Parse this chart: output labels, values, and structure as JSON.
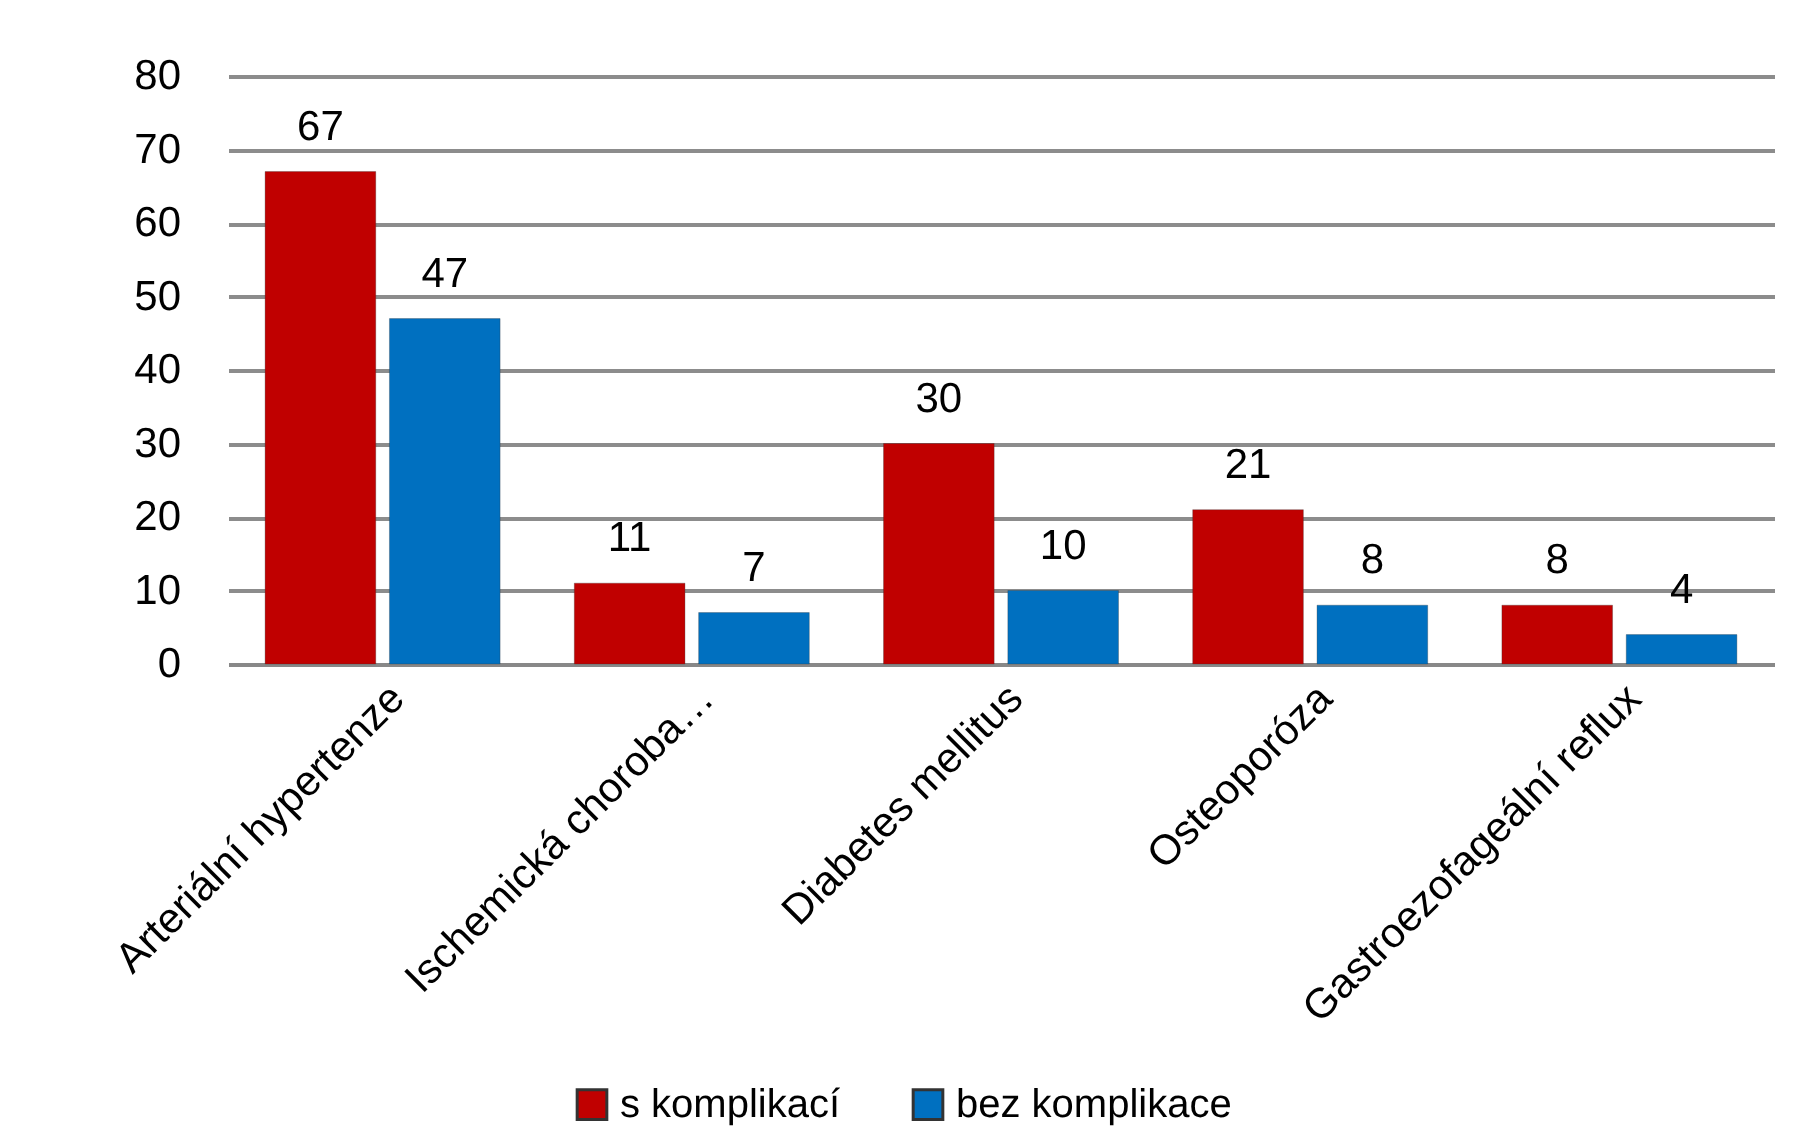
{
  "chart_data": {
    "type": "bar",
    "categories": [
      "Arteriální hypertenze",
      "Ischemická choroba…",
      "Diabetes mellitus",
      "Osteoporóza",
      "Gastroezofageální reflux"
    ],
    "series": [
      {
        "name": "s komplikací",
        "color": "#c00000",
        "values": [
          67,
          11,
          30,
          21,
          8
        ]
      },
      {
        "name": "bez komplikace",
        "color": "#0070c0",
        "values": [
          47,
          7,
          10,
          8,
          4
        ]
      }
    ],
    "ylim": [
      0,
      80
    ],
    "yticks": [
      0,
      10,
      20,
      30,
      40,
      50,
      60,
      70,
      80
    ],
    "grid": "y",
    "legend": "bottom",
    "data_labels": true
  }
}
